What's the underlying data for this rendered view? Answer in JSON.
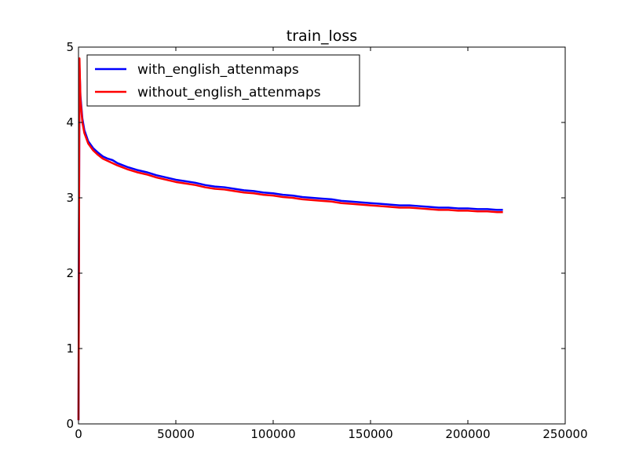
{
  "chart_data": {
    "type": "line",
    "title": "train_loss",
    "xlabel": "",
    "ylabel": "",
    "xlim": [
      0,
      250000
    ],
    "ylim": [
      0,
      5
    ],
    "xticks": [
      0,
      50000,
      100000,
      150000,
      200000,
      250000
    ],
    "xtick_labels": [
      "0",
      "50000",
      "100000",
      "150000",
      "200000",
      "250000"
    ],
    "yticks": [
      0,
      1,
      2,
      3,
      4,
      5
    ],
    "ytick_labels": [
      "0",
      "1",
      "2",
      "3",
      "4",
      "5"
    ],
    "grid": false,
    "legend_position": "top-left",
    "series": [
      {
        "name": "with_english_attenmaps",
        "color": "#0000ff",
        "x": [
          0,
          500,
          1000,
          2000,
          3000,
          5000,
          7500,
          10000,
          12500,
          15000,
          17500,
          20000,
          25000,
          30000,
          35000,
          40000,
          45000,
          50000,
          55000,
          60000,
          65000,
          70000,
          75000,
          80000,
          85000,
          90000,
          95000,
          100000,
          105000,
          110000,
          115000,
          120000,
          125000,
          130000,
          135000,
          140000,
          145000,
          150000,
          155000,
          160000,
          165000,
          170000,
          175000,
          180000,
          185000,
          190000,
          195000,
          200000,
          205000,
          210000,
          215000,
          218000
        ],
        "y": [
          0.05,
          4.75,
          4.35,
          4.05,
          3.9,
          3.75,
          3.66,
          3.6,
          3.55,
          3.52,
          3.5,
          3.46,
          3.41,
          3.37,
          3.34,
          3.3,
          3.27,
          3.24,
          3.22,
          3.2,
          3.17,
          3.15,
          3.14,
          3.12,
          3.1,
          3.09,
          3.07,
          3.06,
          3.04,
          3.03,
          3.01,
          3.0,
          2.99,
          2.98,
          2.96,
          2.95,
          2.94,
          2.93,
          2.92,
          2.91,
          2.9,
          2.9,
          2.89,
          2.88,
          2.87,
          2.87,
          2.86,
          2.86,
          2.85,
          2.85,
          2.84,
          2.84
        ]
      },
      {
        "name": "without_english_attenmaps",
        "color": "#ff0000",
        "x": [
          0,
          500,
          1000,
          2000,
          3000,
          5000,
          7500,
          10000,
          12500,
          15000,
          17500,
          20000,
          25000,
          30000,
          35000,
          40000,
          45000,
          50000,
          55000,
          60000,
          65000,
          70000,
          75000,
          80000,
          85000,
          90000,
          95000,
          100000,
          105000,
          110000,
          115000,
          120000,
          125000,
          130000,
          135000,
          140000,
          145000,
          150000,
          155000,
          160000,
          165000,
          170000,
          175000,
          180000,
          185000,
          190000,
          195000,
          200000,
          205000,
          210000,
          215000,
          218000
        ],
        "y": [
          0.05,
          4.85,
          4.3,
          4.0,
          3.86,
          3.72,
          3.63,
          3.57,
          3.52,
          3.49,
          3.46,
          3.43,
          3.38,
          3.34,
          3.31,
          3.27,
          3.24,
          3.21,
          3.19,
          3.17,
          3.14,
          3.12,
          3.11,
          3.09,
          3.07,
          3.06,
          3.04,
          3.03,
          3.01,
          3.0,
          2.98,
          2.97,
          2.96,
          2.95,
          2.93,
          2.92,
          2.91,
          2.9,
          2.89,
          2.88,
          2.87,
          2.87,
          2.86,
          2.85,
          2.84,
          2.84,
          2.83,
          2.83,
          2.82,
          2.82,
          2.81,
          2.81
        ]
      }
    ]
  }
}
